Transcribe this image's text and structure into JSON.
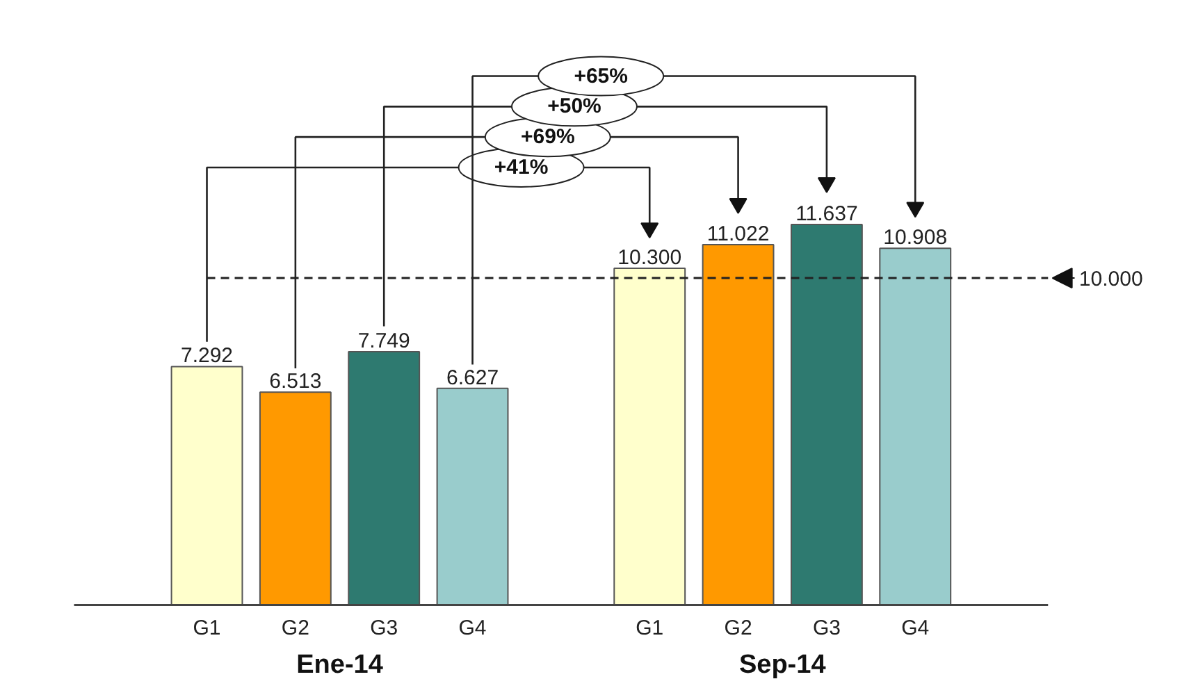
{
  "chart_data": {
    "type": "bar",
    "categories": [
      "Ene-14",
      "Sep-14"
    ],
    "series": [
      {
        "name": "G1",
        "color": "#ffffcc",
        "values": [
          7292,
          10300
        ],
        "value_labels": [
          "7.292",
          "10.300"
        ]
      },
      {
        "name": "G2",
        "color": "#ff9900",
        "values": [
          6513,
          11022
        ],
        "value_labels": [
          "6.513",
          "11.022"
        ]
      },
      {
        "name": "G3",
        "color": "#2e7a70",
        "values": [
          7749,
          11637
        ],
        "value_labels": [
          "7.749",
          "11.637"
        ]
      },
      {
        "name": "G4",
        "color": "#99cccc",
        "values": [
          6627,
          10908
        ],
        "value_labels": [
          "6.627",
          "10.908"
        ]
      }
    ],
    "ref_lines": [
      {
        "axis": "y",
        "value": 10000,
        "label": "10.000",
        "line_style": "dashed"
      }
    ],
    "annotations": [
      "+41%",
      "+69%",
      "+50%",
      "+65%"
    ],
    "grid": false
  }
}
